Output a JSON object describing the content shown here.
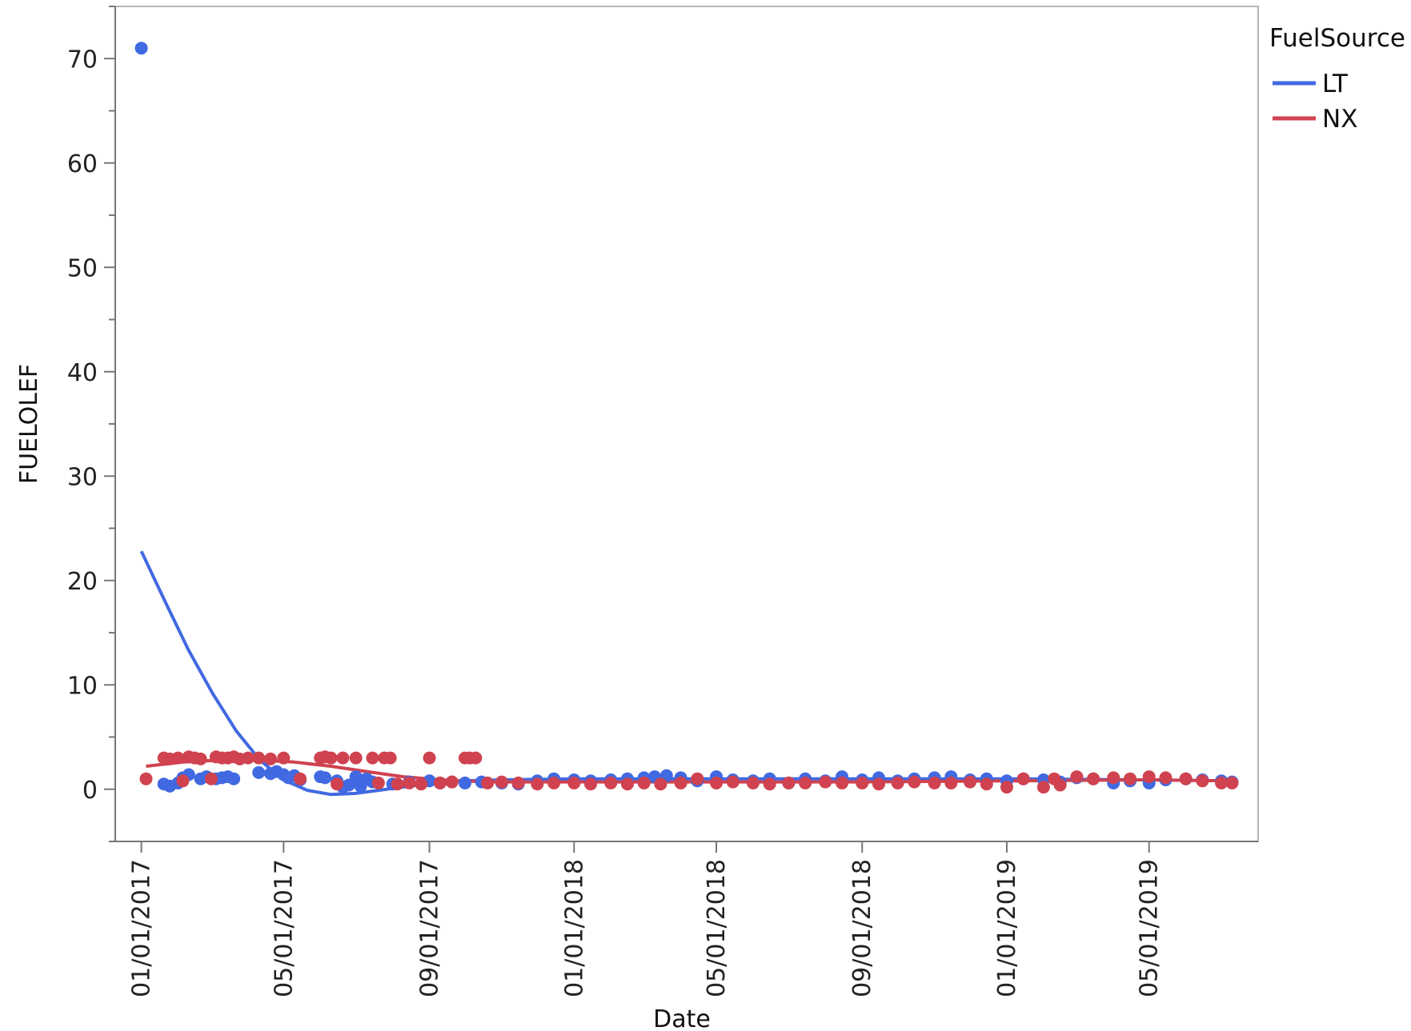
{
  "chart_data": {
    "type": "scatter",
    "title": "",
    "xlabel": "Date",
    "ylabel": "FUELOLEF",
    "xlim": [
      "2016-12-10",
      "2019-08-01"
    ],
    "ylim": [
      -5,
      75
    ],
    "y_ticks": [
      0,
      10,
      20,
      30,
      40,
      50,
      60,
      70
    ],
    "x_ticks": [
      "2017-01-01",
      "2017-05-01",
      "2017-09-01",
      "2018-01-01",
      "2018-05-01",
      "2018-09-01",
      "2019-01-01",
      "2019-05-01"
    ],
    "x_tick_labels": [
      "01/01/2017",
      "05/01/2017",
      "09/01/2017",
      "01/01/2018",
      "05/01/2018",
      "09/01/2018",
      "01/01/2019",
      "05/01/2019"
    ],
    "legend": {
      "title": "FuelSource",
      "position": "right"
    },
    "grid": false,
    "series": [
      {
        "name": "LT",
        "color": "#4169e1",
        "points": [
          [
            "2017-01-01",
            71
          ],
          [
            "2017-01-20",
            0.5
          ],
          [
            "2017-01-25",
            0.3
          ],
          [
            "2017-02-01",
            0.6
          ],
          [
            "2017-02-05",
            1.1
          ],
          [
            "2017-02-10",
            1.4
          ],
          [
            "2017-02-20",
            1.0
          ],
          [
            "2017-02-25",
            1.2
          ],
          [
            "2017-03-05",
            1.0
          ],
          [
            "2017-03-10",
            1.1
          ],
          [
            "2017-03-15",
            1.2
          ],
          [
            "2017-03-20",
            1.0
          ],
          [
            "2017-04-10",
            1.6
          ],
          [
            "2017-04-20",
            1.5
          ],
          [
            "2017-04-25",
            1.7
          ],
          [
            "2017-05-01",
            1.4
          ],
          [
            "2017-05-05",
            1.1
          ],
          [
            "2017-05-10",
            1.3
          ],
          [
            "2017-05-15",
            0.9
          ],
          [
            "2017-06-01",
            1.2
          ],
          [
            "2017-06-05",
            1.1
          ],
          [
            "2017-06-15",
            0.8
          ],
          [
            "2017-06-20",
            0.2
          ],
          [
            "2017-06-25",
            0.4
          ],
          [
            "2017-07-01",
            1.2
          ],
          [
            "2017-07-05",
            0.3
          ],
          [
            "2017-07-10",
            1.0
          ],
          [
            "2017-07-15",
            0.7
          ],
          [
            "2017-08-01",
            0.5
          ],
          [
            "2017-08-15",
            0.7
          ],
          [
            "2017-09-01",
            0.8
          ],
          [
            "2017-09-10",
            0.6
          ],
          [
            "2017-09-20",
            0.7
          ],
          [
            "2017-10-01",
            0.6
          ],
          [
            "2017-10-15",
            0.7
          ],
          [
            "2017-11-01",
            0.6
          ],
          [
            "2017-11-15",
            0.5
          ],
          [
            "2017-12-01",
            0.8
          ],
          [
            "2017-12-15",
            1.0
          ],
          [
            "2018-01-01",
            0.9
          ],
          [
            "2018-01-15",
            0.8
          ],
          [
            "2018-02-01",
            0.9
          ],
          [
            "2018-02-15",
            1.0
          ],
          [
            "2018-03-01",
            1.1
          ],
          [
            "2018-03-10",
            1.2
          ],
          [
            "2018-03-20",
            1.3
          ],
          [
            "2018-04-01",
            1.1
          ],
          [
            "2018-04-15",
            0.8
          ],
          [
            "2018-05-01",
            1.2
          ],
          [
            "2018-05-15",
            0.9
          ],
          [
            "2018-06-01",
            0.8
          ],
          [
            "2018-06-15",
            1.0
          ],
          [
            "2018-07-01",
            0.6
          ],
          [
            "2018-07-15",
            1.0
          ],
          [
            "2018-08-01",
            0.8
          ],
          [
            "2018-08-15",
            1.2
          ],
          [
            "2018-09-01",
            0.9
          ],
          [
            "2018-09-15",
            1.1
          ],
          [
            "2018-10-01",
            0.8
          ],
          [
            "2018-10-15",
            1.0
          ],
          [
            "2018-11-01",
            1.1
          ],
          [
            "2018-11-15",
            1.2
          ],
          [
            "2018-12-01",
            0.9
          ],
          [
            "2018-12-15",
            1.0
          ],
          [
            "2019-01-01",
            0.8
          ],
          [
            "2019-01-15",
            1.0
          ],
          [
            "2019-02-01",
            0.9
          ],
          [
            "2019-02-15",
            0.7
          ],
          [
            "2019-03-01",
            1.1
          ],
          [
            "2019-03-15",
            1.0
          ],
          [
            "2019-04-01",
            0.6
          ],
          [
            "2019-04-15",
            0.8
          ],
          [
            "2019-05-01",
            0.6
          ],
          [
            "2019-05-15",
            0.9
          ],
          [
            "2019-06-01",
            1.0
          ],
          [
            "2019-06-15",
            0.9
          ],
          [
            "2019-07-01",
            0.8
          ],
          [
            "2019-07-10",
            0.7
          ]
        ],
        "fit": [
          [
            "2017-01-01",
            22.8
          ],
          [
            "2017-01-21",
            18.0
          ],
          [
            "2017-02-10",
            13.3
          ],
          [
            "2017-03-02",
            9.2
          ],
          [
            "2017-03-22",
            5.6
          ],
          [
            "2017-04-11",
            2.8
          ],
          [
            "2017-05-01",
            0.9
          ],
          [
            "2017-05-21",
            -0.1
          ],
          [
            "2017-06-10",
            -0.5
          ],
          [
            "2017-06-30",
            -0.4
          ],
          [
            "2017-07-20",
            -0.1
          ],
          [
            "2017-08-09",
            0.2
          ],
          [
            "2017-08-29",
            0.5
          ],
          [
            "2017-09-28",
            0.8
          ],
          [
            "2017-11-01",
            0.9
          ],
          [
            "2018-01-01",
            1.0
          ],
          [
            "2018-05-01",
            1.0
          ],
          [
            "2018-09-01",
            1.0
          ],
          [
            "2019-01-01",
            1.0
          ],
          [
            "2019-05-01",
            0.9
          ],
          [
            "2019-07-10",
            0.8
          ]
        ]
      },
      {
        "name": "NX",
        "color": "#d0424f",
        "points": [
          [
            "2017-01-05",
            1.0
          ],
          [
            "2017-01-20",
            3.0
          ],
          [
            "2017-01-25",
            2.9
          ],
          [
            "2017-02-01",
            3.0
          ],
          [
            "2017-02-05",
            0.8
          ],
          [
            "2017-02-10",
            3.1
          ],
          [
            "2017-02-15",
            3.0
          ],
          [
            "2017-02-20",
            2.9
          ],
          [
            "2017-03-01",
            1.0
          ],
          [
            "2017-03-05",
            3.1
          ],
          [
            "2017-03-10",
            3.0
          ],
          [
            "2017-03-15",
            3.0
          ],
          [
            "2017-03-20",
            3.1
          ],
          [
            "2017-03-25",
            2.9
          ],
          [
            "2017-04-01",
            3.0
          ],
          [
            "2017-04-10",
            3.0
          ],
          [
            "2017-04-20",
            2.9
          ],
          [
            "2017-05-01",
            3.0
          ],
          [
            "2017-05-15",
            1.0
          ],
          [
            "2017-06-01",
            3.0
          ],
          [
            "2017-06-05",
            3.1
          ],
          [
            "2017-06-10",
            3.0
          ],
          [
            "2017-06-15",
            0.5
          ],
          [
            "2017-06-20",
            3.0
          ],
          [
            "2017-07-01",
            3.0
          ],
          [
            "2017-07-15",
            3.0
          ],
          [
            "2017-07-20",
            0.6
          ],
          [
            "2017-07-25",
            3.0
          ],
          [
            "2017-07-30",
            3.0
          ],
          [
            "2017-08-05",
            0.5
          ],
          [
            "2017-08-15",
            0.6
          ],
          [
            "2017-08-25",
            0.5
          ],
          [
            "2017-09-01",
            3.0
          ],
          [
            "2017-09-10",
            0.6
          ],
          [
            "2017-09-20",
            0.7
          ],
          [
            "2017-10-01",
            3.0
          ],
          [
            "2017-10-05",
            3.0
          ],
          [
            "2017-10-10",
            3.0
          ],
          [
            "2017-10-20",
            0.6
          ],
          [
            "2017-11-01",
            0.7
          ],
          [
            "2017-11-15",
            0.6
          ],
          [
            "2017-12-01",
            0.5
          ],
          [
            "2017-12-15",
            0.6
          ],
          [
            "2018-01-01",
            0.6
          ],
          [
            "2018-01-15",
            0.5
          ],
          [
            "2018-02-01",
            0.6
          ],
          [
            "2018-02-15",
            0.5
          ],
          [
            "2018-03-01",
            0.6
          ],
          [
            "2018-03-15",
            0.5
          ],
          [
            "2018-04-01",
            0.6
          ],
          [
            "2018-04-15",
            1.0
          ],
          [
            "2018-05-01",
            0.6
          ],
          [
            "2018-05-15",
            0.7
          ],
          [
            "2018-06-01",
            0.6
          ],
          [
            "2018-06-15",
            0.5
          ],
          [
            "2018-07-01",
            0.6
          ],
          [
            "2018-07-15",
            0.6
          ],
          [
            "2018-08-01",
            0.7
          ],
          [
            "2018-08-15",
            0.6
          ],
          [
            "2018-09-01",
            0.6
          ],
          [
            "2018-09-15",
            0.5
          ],
          [
            "2018-10-01",
            0.6
          ],
          [
            "2018-10-15",
            0.7
          ],
          [
            "2018-11-01",
            0.6
          ],
          [
            "2018-11-15",
            0.6
          ],
          [
            "2018-12-01",
            0.7
          ],
          [
            "2018-12-15",
            0.5
          ],
          [
            "2019-01-01",
            0.2
          ],
          [
            "2019-01-15",
            1.0
          ],
          [
            "2019-02-01",
            0.2
          ],
          [
            "2019-02-10",
            1.0
          ],
          [
            "2019-02-15",
            0.4
          ],
          [
            "2019-03-01",
            1.2
          ],
          [
            "2019-03-15",
            1.0
          ],
          [
            "2019-04-01",
            1.1
          ],
          [
            "2019-04-15",
            1.0
          ],
          [
            "2019-05-01",
            1.2
          ],
          [
            "2019-05-15",
            1.1
          ],
          [
            "2019-06-01",
            1.0
          ],
          [
            "2019-06-15",
            0.8
          ],
          [
            "2019-07-01",
            0.6
          ],
          [
            "2019-07-10",
            0.6
          ]
        ],
        "fit": [
          [
            "2017-01-05",
            2.2
          ],
          [
            "2017-02-05",
            2.6
          ],
          [
            "2017-03-10",
            2.8
          ],
          [
            "2017-04-10",
            2.8
          ],
          [
            "2017-05-10",
            2.6
          ],
          [
            "2017-06-10",
            2.2
          ],
          [
            "2017-07-10",
            1.7
          ],
          [
            "2017-08-10",
            1.2
          ],
          [
            "2017-09-10",
            0.9
          ],
          [
            "2017-10-20",
            0.7
          ],
          [
            "2018-01-01",
            0.7
          ],
          [
            "2018-05-01",
            0.7
          ],
          [
            "2018-09-01",
            0.7
          ],
          [
            "2019-01-01",
            0.8
          ],
          [
            "2019-05-01",
            0.9
          ],
          [
            "2019-07-10",
            0.8
          ]
        ]
      }
    ]
  }
}
